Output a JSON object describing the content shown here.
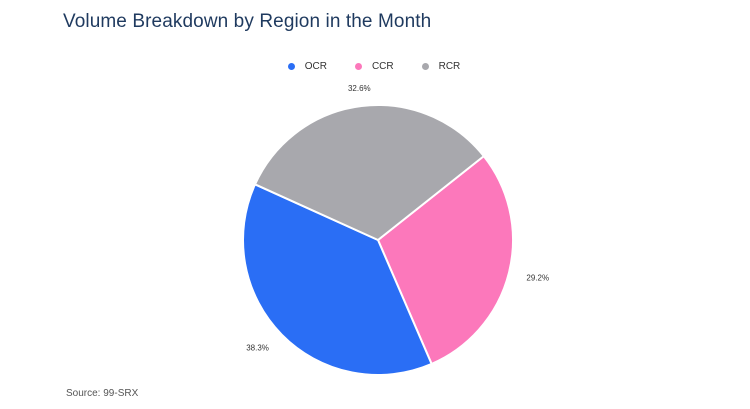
{
  "page": {
    "title": "Volume Breakdown by Region in the Month",
    "source": "Source: 99-SRX"
  },
  "chart_data": {
    "type": "pie",
    "title": "Volume Breakdown by Region in the Month",
    "legend_placement": "top-center",
    "slices": [
      {
        "label": "OCR",
        "value": 38.3,
        "value_label": "38.3%",
        "color": "#2a6ef5"
      },
      {
        "label": "CCR",
        "value": 29.2,
        "value_label": "29.2%",
        "color": "#fc78bb"
      },
      {
        "label": "RCR",
        "value": 32.6,
        "value_label": "32.6%",
        "color": "#a8a8ad"
      }
    ]
  }
}
